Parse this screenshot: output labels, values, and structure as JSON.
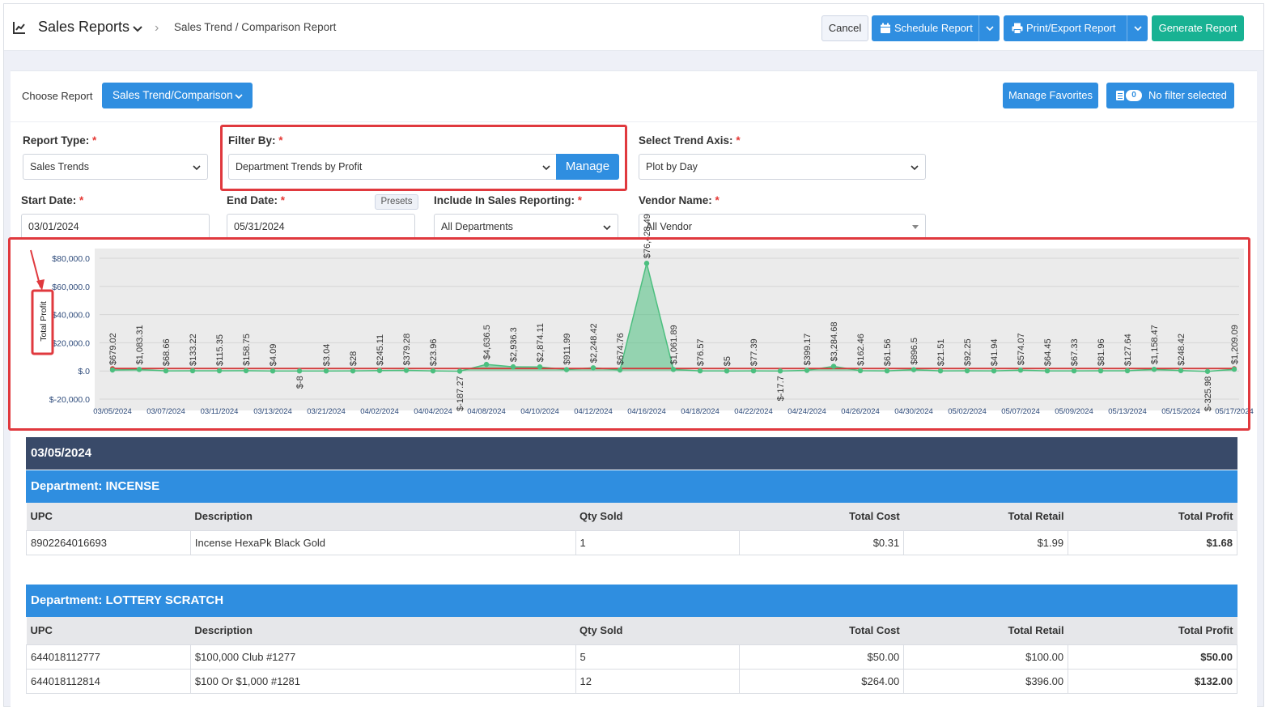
{
  "header": {
    "title": "Sales Reports",
    "breadcrumb": "Sales Trend / Comparison Report",
    "cancel_label": "Cancel",
    "schedule_label": "Schedule Report",
    "print_label": "Print/Export Report",
    "generate_label": "Generate Report"
  },
  "toolbar": {
    "choose_label": "Choose Report",
    "choose_value": "Sales Trend/Comparison",
    "favorites_label": "Manage Favorites",
    "filter_count": "0",
    "filter_label": "No filter selected"
  },
  "filters": {
    "report_type": {
      "label": "Report Type:",
      "value": "Sales Trends"
    },
    "filter_by": {
      "label": "Filter By:",
      "value": "Department Trends by Profit",
      "manage_label": "Manage"
    },
    "trend_axis": {
      "label": "Select Trend Axis:",
      "value": "Plot by Day"
    },
    "start_date": {
      "label": "Start Date:",
      "value": "03/01/2024"
    },
    "end_date": {
      "label": "End Date:",
      "value": "05/31/2024",
      "presets_label": "Presets"
    },
    "include": {
      "label": "Include In Sales Reporting:",
      "value": "All Departments"
    },
    "vendor": {
      "label": "Vendor Name:",
      "value": "All Vendor"
    },
    "required_mark": "*"
  },
  "chart_data": {
    "type": "area",
    "ylabel": "Total Profit",
    "ylim": [
      -20000,
      80000
    ],
    "yticks": [
      "$80,000.0",
      "$60,000.0",
      "$40,000.0",
      "$20,000.0",
      "$.0",
      "$-20,000.0"
    ],
    "ytick_values": [
      80000,
      60000,
      40000,
      20000,
      0,
      -20000
    ],
    "x_tick_labels": [
      "03/05/2024",
      "03/07/2024",
      "03/11/2024",
      "03/13/2024",
      "03/21/2024",
      "04/02/2024",
      "04/04/2024",
      "04/08/2024",
      "04/10/2024",
      "04/12/2024",
      "04/16/2024",
      "04/18/2024",
      "04/22/2024",
      "04/24/2024",
      "04/26/2024",
      "04/30/2024",
      "05/02/2024",
      "05/07/2024",
      "05/09/2024",
      "05/13/2024",
      "05/15/2024",
      "05/17/2024"
    ],
    "data_labels": [
      "$679.02",
      "$1,083.31",
      "$68.66",
      "$133.22",
      "$115.35",
      "$158.75",
      "$4.09",
      "$-8",
      "$3.04",
      "$28",
      "$245.11",
      "$379.28",
      "$23.96",
      "$-187.27",
      "$4,636.5",
      "$2,936.3",
      "$2,874.11",
      "$911.99",
      "$2,248.42",
      "$674.76",
      "$76,428.49",
      "$1,061.89",
      "$76.57",
      "$5",
      "$77.39",
      "$-17.7",
      "$399.17",
      "$3,284.68",
      "$162.46",
      "$61.56",
      "$896.5",
      "$21.51",
      "$92.25",
      "$41.94",
      "$574.07",
      "$64.45",
      "$67.33",
      "$81.96",
      "$127.64",
      "$1,158.47",
      "$248.42",
      "$-325.98",
      "$1,209.09"
    ],
    "values": [
      679.02,
      1083.31,
      68.66,
      133.22,
      115.35,
      158.75,
      4.09,
      -8,
      3.04,
      28,
      245.11,
      379.28,
      23.96,
      -187.27,
      4636.5,
      2936.3,
      2874.11,
      911.99,
      2248.42,
      674.76,
      76428.49,
      1061.89,
      76.57,
      5,
      77.39,
      -17.7,
      399.17,
      3284.68,
      162.46,
      61.56,
      896.5,
      21.51,
      92.25,
      41.94,
      574.07,
      64.45,
      67.33,
      81.96,
      127.64,
      1158.47,
      248.42,
      -325.98,
      1209.09
    ],
    "colors": {
      "area": "#4cbf7f",
      "trend": "#d23a3a",
      "plot_bg": "#ebebeb"
    }
  },
  "report": {
    "date_heading": "03/05/2024",
    "columns": [
      "UPC",
      "Description",
      "Qty Sold",
      "Total Cost",
      "Total Retail",
      "Total Profit"
    ],
    "departments": [
      {
        "title": "Department: INCENSE",
        "rows": [
          [
            "8902264016693",
            "Incense HexaPk Black Gold",
            "1",
            "$0.31",
            "$1.99",
            "$1.68"
          ]
        ]
      },
      {
        "title": "Department: LOTTERY SCRATCH",
        "rows": [
          [
            "644018112777",
            "$100,000 Club #1277",
            "5",
            "$50.00",
            "$100.00",
            "$50.00"
          ],
          [
            "644018112814",
            "$100 Or $1,000 #1281",
            "12",
            "$264.00",
            "$396.00",
            "$132.00"
          ]
        ]
      }
    ]
  }
}
